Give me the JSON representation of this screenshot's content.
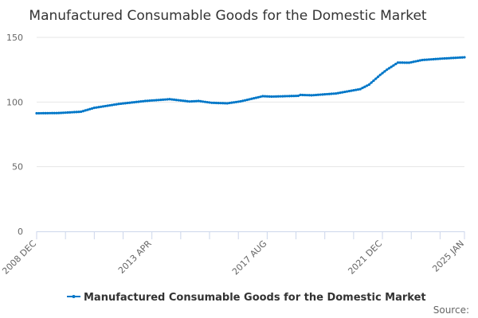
{
  "chart_data": {
    "type": "line",
    "title": "Manufactured Consumable Goods for the Domestic Market",
    "xlabel": "",
    "ylabel": "",
    "ylim": [
      0,
      150
    ],
    "yticks": [
      0,
      50,
      100,
      150
    ],
    "grid": true,
    "x_start": "2008 DEC",
    "x_end": "2025 JAN",
    "x_months_span": 193,
    "xtick_labels": [
      {
        "label": "2008 DEC",
        "month": 0
      },
      {
        "label": "2013 APR",
        "month": 52
      },
      {
        "label": "2017 AUG",
        "month": 104
      },
      {
        "label": "2021 DEC",
        "month": 156
      },
      {
        "label": "2025 JAN",
        "month": 193
      }
    ],
    "xtick_interval_months": 13,
    "legend_position": "bottom-center",
    "series": [
      {
        "name": "Manufactured Consumable Goods for the Domestic Market",
        "color": "#0077c8",
        "points_month_value": [
          [
            0,
            91.3
          ],
          [
            10,
            91.5
          ],
          [
            20,
            92.5
          ],
          [
            26,
            95.5
          ],
          [
            37,
            98.5
          ],
          [
            49,
            100.8
          ],
          [
            60,
            102.2
          ],
          [
            69,
            100.4
          ],
          [
            73,
            100.8
          ],
          [
            79,
            99.4
          ],
          [
            86,
            99
          ],
          [
            92,
            100.5
          ],
          [
            102,
            104.5
          ],
          [
            106,
            104.2
          ],
          [
            118,
            104.8
          ],
          [
            119,
            105.5
          ],
          [
            124,
            105.2
          ],
          [
            135,
            106.6
          ],
          [
            146,
            110
          ],
          [
            150,
            113.5
          ],
          [
            155,
            121
          ],
          [
            158,
            125
          ],
          [
            163,
            130.5
          ],
          [
            168,
            130.4
          ],
          [
            174,
            132.5
          ],
          [
            183,
            133.6
          ],
          [
            193,
            134.6
          ]
        ]
      }
    ]
  },
  "source_label": "Source:"
}
